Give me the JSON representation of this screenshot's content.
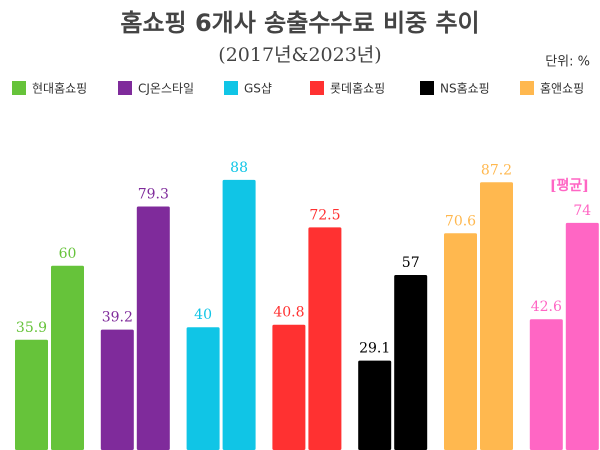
{
  "chart_data": {
    "type": "bar",
    "title": "홈쇼핑 6개사 송출수수료 비중 추이",
    "subtitle": "(2017년&2023년)",
    "unit_label": "단위: %",
    "series": [
      {
        "name": "현대홈쇼핑",
        "color": "#66c33a",
        "values": [
          35.9,
          60
        ]
      },
      {
        "name": "CJ온스타일",
        "color": "#7f2b9b",
        "values": [
          39.2,
          79.3
        ]
      },
      {
        "name": "GS샵",
        "color": "#10c5e6",
        "values": [
          40,
          88
        ]
      },
      {
        "name": "롯데홈쇼핑",
        "color": "#ff3131",
        "values": [
          40.8,
          72.5
        ]
      },
      {
        "name": "NS홈쇼핑",
        "color": "#000000",
        "values": [
          29.1,
          57
        ]
      },
      {
        "name": "홈앤쇼핑",
        "color": "#ffb84f",
        "values": [
          70.6,
          87.2
        ]
      }
    ],
    "average": {
      "label": "[평균]",
      "color": "#ff66c4",
      "values": [
        42.6,
        74
      ]
    }
  }
}
